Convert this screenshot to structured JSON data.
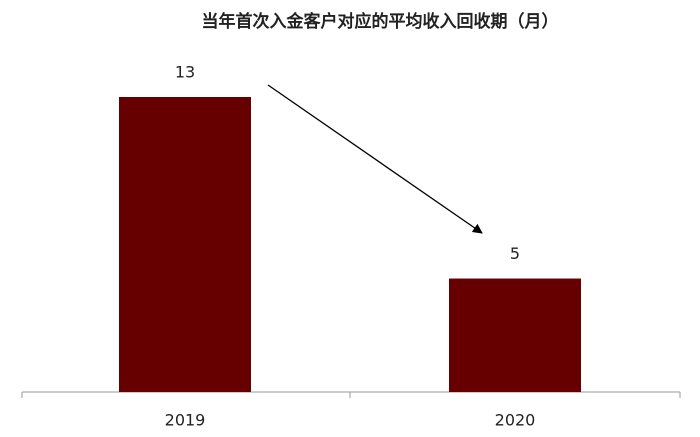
{
  "chart_data": {
    "type": "bar",
    "title": "当年首次入金客户对应的平均收入回收期（月）",
    "categories": [
      "2019",
      "2020"
    ],
    "values": [
      13,
      5
    ],
    "color": "#660000"
  }
}
